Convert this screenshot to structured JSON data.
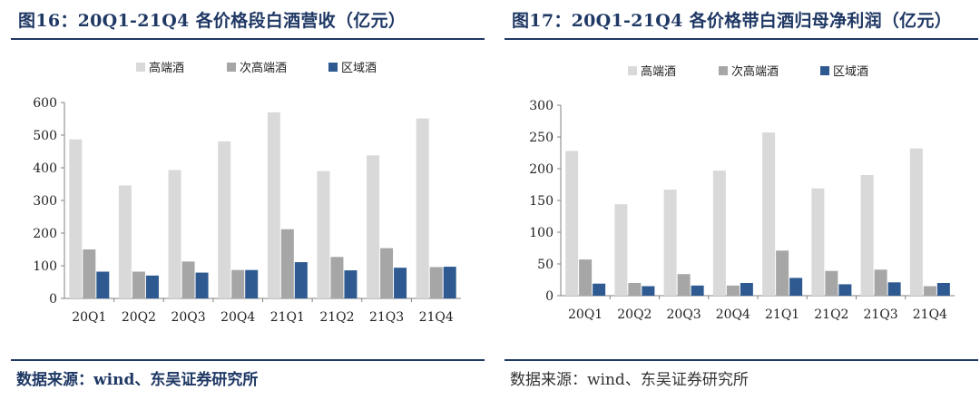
{
  "left_panel": {
    "title": "图16：20Q1-21Q4 各价格段白酒营收（亿元）",
    "source": "数据来源：wind、东吴证券研究所"
  },
  "right_panel": {
    "title": "图17：20Q1-21Q4 各价格带白酒归母净利润（亿元）",
    "source": "数据来源：wind、东吴证券研究所"
  },
  "colors": {
    "high_end": "#d9d9d9",
    "sub_high_end": "#a6a6a6",
    "regional": "#2e5a91",
    "accent": "#1f3864"
  },
  "chart_data": [
    {
      "type": "bar",
      "categories": [
        "20Q1",
        "20Q2",
        "20Q3",
        "20Q4",
        "21Q1",
        "21Q2",
        "21Q3",
        "21Q4"
      ],
      "series": [
        {
          "name": "高端酒",
          "values": [
            487,
            346,
            393,
            481,
            570,
            390,
            438,
            551
          ]
        },
        {
          "name": "次高端酒",
          "values": [
            150,
            82,
            113,
            87,
            212,
            127,
            154,
            96
          ]
        },
        {
          "name": "区域酒",
          "values": [
            82,
            70,
            79,
            87,
            111,
            86,
            94,
            97
          ]
        }
      ],
      "ylim": [
        0,
        600
      ],
      "yticks": [
        0,
        100,
        200,
        300,
        400,
        500,
        600
      ],
      "legend": "top-center",
      "grid": false
    },
    {
      "type": "bar",
      "categories": [
        "20Q1",
        "20Q2",
        "20Q3",
        "20Q4",
        "21Q1",
        "21Q2",
        "21Q3",
        "21Q4"
      ],
      "series": [
        {
          "name": "高端酒",
          "values": [
            228,
            144,
            167,
            197,
            257,
            169,
            190,
            232
          ]
        },
        {
          "name": "次高端酒",
          "values": [
            57,
            20,
            34,
            16,
            71,
            39,
            41,
            15
          ]
        },
        {
          "name": "区域酒",
          "values": [
            19,
            15,
            16,
            20,
            28,
            18,
            21,
            20
          ]
        }
      ],
      "ylim": [
        0,
        300
      ],
      "yticks": [
        0,
        50,
        100,
        150,
        200,
        250,
        300
      ],
      "legend": "top-center",
      "grid": false
    }
  ]
}
